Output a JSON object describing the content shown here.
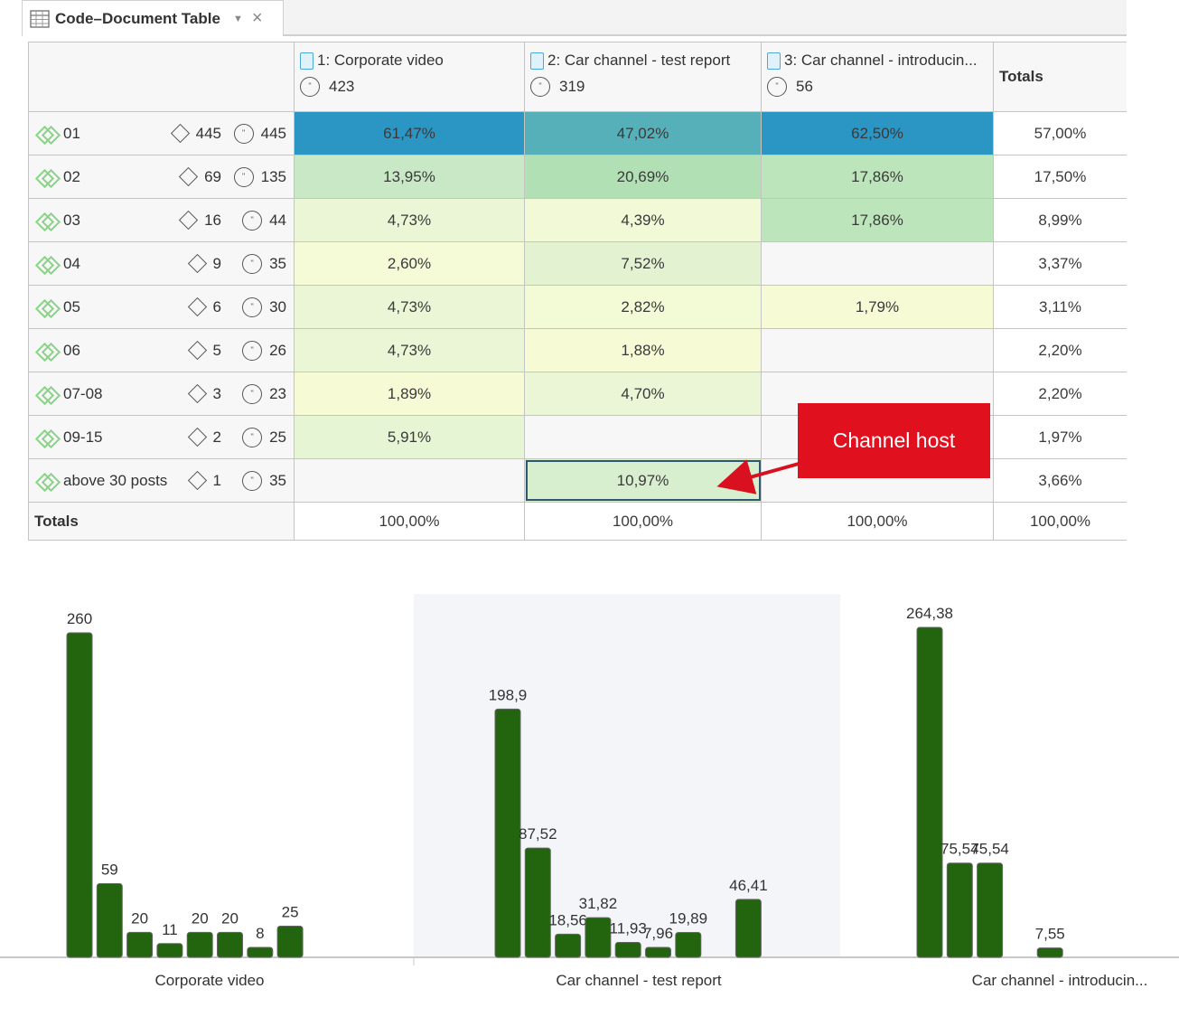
{
  "tab": {
    "title": "Code–Document Table"
  },
  "columns": [
    {
      "label": "1: Corporate video",
      "count": "423"
    },
    {
      "label": "2: Car channel - test report",
      "count": "319"
    },
    {
      "label": "3: Car channel - introducin...",
      "count": "56"
    }
  ],
  "totals_header": "Totals",
  "rows": [
    {
      "code": "01",
      "n1": "445",
      "n2": "445",
      "v": [
        "61,47%",
        "47,02%",
        "62,50%"
      ],
      "total": "57,00%",
      "colors": [
        "#2b95c3",
        "#56b0ba",
        "#2b95c3"
      ]
    },
    {
      "code": "02",
      "n1": "69",
      "n2": "135",
      "v": [
        "13,95%",
        "20,69%",
        "17,86%"
      ],
      "total": "17,50%",
      "colors": [
        "#c9e9c6",
        "#b2e0b5",
        "#bde5bc"
      ]
    },
    {
      "code": "03",
      "n1": "16",
      "n2": "44",
      "v": [
        "4,73%",
        "4,39%",
        "17,86%"
      ],
      "total": "8,99%",
      "colors": [
        "#eaf6d6",
        "#f1f9d6",
        "#bde5bc"
      ]
    },
    {
      "code": "04",
      "n1": "9",
      "n2": "35",
      "v": [
        "2,60%",
        "7,52%",
        ""
      ],
      "total": "3,37%",
      "colors": [
        "#f4fbd6",
        "#e3f3d2",
        "#f7f7f7"
      ]
    },
    {
      "code": "05",
      "n1": "6",
      "n2": "30",
      "v": [
        "4,73%",
        "2,82%",
        "1,79%"
      ],
      "total": "3,11%",
      "colors": [
        "#eaf6d6",
        "#f3fad6",
        "#f6fbd6"
      ]
    },
    {
      "code": "06",
      "n1": "5",
      "n2": "26",
      "v": [
        "4,73%",
        "1,88%",
        ""
      ],
      "total": "2,20%",
      "colors": [
        "#eaf6d6",
        "#f6fbd6",
        "#f7f7f7"
      ]
    },
    {
      "code": "07-08",
      "n1": "3",
      "n2": "23",
      "v": [
        "1,89%",
        "4,70%",
        ""
      ],
      "total": "2,20%",
      "colors": [
        "#f6fbd6",
        "#eaf6d6",
        "#f7f7f7"
      ]
    },
    {
      "code": "09-15",
      "n1": "2",
      "n2": "25",
      "v": [
        "5,91%",
        "",
        ""
      ],
      "total": "1,97%",
      "colors": [
        "#e6f5d4",
        "#f7f7f7",
        "#f7f7f7"
      ]
    },
    {
      "code": "above 30 posts",
      "n1": "1",
      "n2": "35",
      "v": [
        "",
        "10,97%",
        ""
      ],
      "total": "3,66%",
      "colors": [
        "#f7f7f7",
        "#d8efcf",
        "#f7f7f7"
      ]
    }
  ],
  "totals_row": {
    "label": "Totals",
    "values": [
      "100,00%",
      "100,00%",
      "100,00%",
      "100,00%"
    ]
  },
  "callout": {
    "text": "Channel host"
  },
  "chart_data": {
    "type": "bar",
    "groups": [
      {
        "name": "Corporate video",
        "values": [
          260,
          59,
          20,
          11,
          20,
          20,
          8,
          25,
          null
        ],
        "labels": [
          "260",
          "59",
          "20",
          "11",
          "20",
          "20",
          "8",
          "25",
          ""
        ]
      },
      {
        "name": "Car channel - test report",
        "values": [
          198.9,
          87.52,
          18.56,
          31.82,
          11.93,
          7.96,
          19.89,
          null,
          46.41
        ],
        "labels": [
          "198,9",
          "87,52",
          "18,56",
          "31,82",
          "11,93",
          "7,96",
          "19,89",
          "",
          "46,41"
        ]
      },
      {
        "name": "Car channel - introducin...",
        "values": [
          264.38,
          75.54,
          75.54,
          null,
          7.55,
          null,
          null,
          null,
          null
        ],
        "labels": [
          "264,38",
          "75,54",
          "75,54",
          "",
          "7,55",
          "",
          "",
          "",
          ""
        ]
      }
    ],
    "bar_color": "#23640f"
  }
}
